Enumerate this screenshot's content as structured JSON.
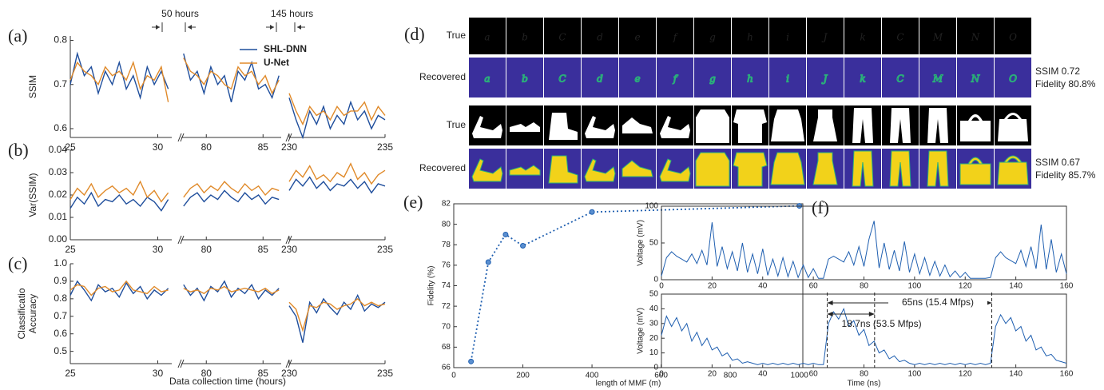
{
  "chart_data": [
    {
      "type": "broken-line",
      "label": "(a)",
      "ylabel": "SSIM",
      "ylim": [
        0.58,
        0.81
      ],
      "yticks": [
        0.6,
        0.7,
        0.8
      ],
      "series": [
        {
          "name": "SHL-DNN",
          "color": "#1f4e9c"
        },
        {
          "name": "U-Net",
          "color": "#e08a2a"
        }
      ],
      "legend": "upper right",
      "annotations": [
        "50 hours",
        "145 hours"
      ],
      "segments": [
        {
          "xlim": [
            25,
            30.8
          ],
          "xticks": [
            25,
            30
          ],
          "x": [
            25,
            25.4,
            25.8,
            26.2,
            26.6,
            27,
            27.4,
            27.8,
            28.2,
            28.6,
            29,
            29.4,
            29.8,
            30.2,
            30.6
          ],
          "series": [
            {
              "values": [
                0.7,
                0.77,
                0.72,
                0.74,
                0.68,
                0.73,
                0.7,
                0.75,
                0.69,
                0.72,
                0.67,
                0.74,
                0.7,
                0.73,
                0.69
              ]
            },
            {
              "values": [
                0.71,
                0.75,
                0.73,
                0.72,
                0.7,
                0.74,
                0.72,
                0.73,
                0.71,
                0.75,
                0.69,
                0.72,
                0.71,
                0.74,
                0.66
              ]
            }
          ]
        },
        {
          "xlim": [
            77.8,
            86.6
          ],
          "xticks": [
            80,
            85
          ],
          "x": [
            78,
            78.6,
            79.2,
            79.8,
            80.4,
            81,
            81.6,
            82.2,
            82.8,
            83.4,
            84,
            84.6,
            85.2,
            85.8,
            86.4
          ],
          "series": [
            {
              "values": [
                0.77,
                0.71,
                0.73,
                0.68,
                0.74,
                0.7,
                0.72,
                0.66,
                0.73,
                0.71,
                0.75,
                0.69,
                0.7,
                0.67,
                0.72
              ]
            },
            {
              "values": [
                0.76,
                0.73,
                0.72,
                0.7,
                0.73,
                0.72,
                0.7,
                0.69,
                0.74,
                0.72,
                0.73,
                0.7,
                0.72,
                0.68,
                0.71
              ]
            }
          ]
        },
        {
          "xlim": [
            230,
            235
          ],
          "xticks": [
            230,
            235
          ],
          "x": [
            230,
            230.36,
            230.71,
            231.07,
            231.43,
            231.79,
            232.14,
            232.5,
            232.86,
            233.21,
            233.57,
            233.93,
            234.29,
            234.64,
            235
          ],
          "series": [
            {
              "values": [
                0.67,
                0.62,
                0.58,
                0.64,
                0.61,
                0.65,
                0.6,
                0.63,
                0.61,
                0.66,
                0.62,
                0.64,
                0.6,
                0.63,
                0.62
              ]
            },
            {
              "values": [
                0.68,
                0.64,
                0.61,
                0.65,
                0.63,
                0.64,
                0.62,
                0.65,
                0.63,
                0.64,
                0.64,
                0.66,
                0.62,
                0.65,
                0.63
              ]
            }
          ]
        }
      ]
    },
    {
      "type": "broken-line",
      "label": "(b)",
      "ylabel": "Var(SSIM)",
      "ylim": [
        0,
        0.04
      ],
      "yticks": [
        {
          "value": 0,
          "label": "0.00"
        },
        0.01,
        0.02,
        0.03,
        0.04
      ],
      "series": [
        {
          "color": "#1f4e9c"
        },
        {
          "color": "#e08a2a"
        }
      ],
      "segments": [
        {
          "xlim": [
            25,
            30.8
          ],
          "xticks": [
            25,
            30
          ],
          "x": [
            25,
            25.4,
            25.8,
            26.2,
            26.6,
            27,
            27.4,
            27.8,
            28.2,
            28.6,
            29,
            29.4,
            29.8,
            30.2,
            30.6
          ],
          "series": [
            {
              "values": [
                0.014,
                0.019,
                0.016,
                0.021,
                0.015,
                0.018,
                0.017,
                0.02,
                0.016,
                0.018,
                0.015,
                0.019,
                0.017,
                0.013,
                0.018
              ]
            },
            {
              "values": [
                0.018,
                0.023,
                0.02,
                0.025,
                0.019,
                0.022,
                0.024,
                0.021,
                0.023,
                0.02,
                0.026,
                0.019,
                0.022,
                0.017,
                0.021
              ]
            }
          ]
        },
        {
          "xlim": [
            77.8,
            86.6
          ],
          "xticks": [
            80,
            85
          ],
          "x": [
            78,
            78.6,
            79.2,
            79.8,
            80.4,
            81,
            81.6,
            82.2,
            82.8,
            83.4,
            84,
            84.6,
            85.2,
            85.8,
            86.4
          ],
          "series": [
            {
              "values": [
                0.015,
                0.019,
                0.021,
                0.017,
                0.02,
                0.018,
                0.022,
                0.019,
                0.017,
                0.021,
                0.018,
                0.02,
                0.016,
                0.019,
                0.018
              ]
            },
            {
              "values": [
                0.019,
                0.023,
                0.025,
                0.021,
                0.024,
                0.022,
                0.026,
                0.023,
                0.021,
                0.025,
                0.022,
                0.024,
                0.02,
                0.023,
                0.022
              ]
            }
          ]
        },
        {
          "xlim": [
            230,
            235
          ],
          "xticks": [
            230,
            235
          ],
          "x": [
            230,
            230.36,
            230.71,
            231.07,
            231.43,
            231.79,
            232.14,
            232.5,
            232.86,
            233.21,
            233.57,
            233.93,
            234.29,
            234.64,
            235
          ],
          "series": [
            {
              "values": [
                0.022,
                0.027,
                0.024,
                0.028,
                0.023,
                0.026,
                0.022,
                0.025,
                0.024,
                0.027,
                0.023,
                0.026,
                0.021,
                0.025,
                0.024
              ]
            },
            {
              "values": [
                0.026,
                0.031,
                0.028,
                0.033,
                0.027,
                0.029,
                0.026,
                0.03,
                0.028,
                0.034,
                0.027,
                0.03,
                0.025,
                0.029,
                0.031
              ]
            }
          ]
        }
      ]
    },
    {
      "type": "broken-line",
      "label": "(c)",
      "ylabel": [
        "Classificatio",
        "Accuracy"
      ],
      "xlabel": "Data collection time (hours)",
      "ylim": [
        0.43,
        1.0
      ],
      "yticks": [
        0.5,
        0.6,
        0.7,
        0.8,
        0.9,
        {
          "value": 1,
          "label": "1.0"
        }
      ],
      "series": [
        {
          "color": "#1f4e9c"
        },
        {
          "color": "#e08a2a"
        }
      ],
      "segments": [
        {
          "xlim": [
            25,
            30.8
          ],
          "xticks": [
            25,
            30
          ],
          "x": [
            25,
            25.4,
            25.8,
            26.2,
            26.6,
            27,
            27.4,
            27.8,
            28.2,
            28.6,
            29,
            29.4,
            29.8,
            30.2,
            30.6
          ],
          "series": [
            {
              "values": [
                0.82,
                0.9,
                0.85,
                0.79,
                0.88,
                0.84,
                0.86,
                0.81,
                0.89,
                0.83,
                0.87,
                0.8,
                0.85,
                0.82,
                0.86
              ]
            },
            {
              "values": [
                0.85,
                0.88,
                0.87,
                0.82,
                0.86,
                0.87,
                0.84,
                0.85,
                0.9,
                0.85,
                0.84,
                0.83,
                0.87,
                0.84,
                0.85
              ]
            }
          ]
        },
        {
          "xlim": [
            77.8,
            86.6
          ],
          "xticks": [
            80,
            85
          ],
          "x": [
            78,
            78.6,
            79.2,
            79.8,
            80.4,
            81,
            81.6,
            82.2,
            82.8,
            83.4,
            84,
            84.6,
            85.2,
            85.8,
            86.4
          ],
          "series": [
            {
              "values": [
                0.88,
                0.82,
                0.86,
                0.79,
                0.87,
                0.84,
                0.9,
                0.81,
                0.86,
                0.83,
                0.88,
                0.8,
                0.85,
                0.82,
                0.86
              ]
            },
            {
              "values": [
                0.86,
                0.84,
                0.85,
                0.83,
                0.86,
                0.85,
                0.87,
                0.84,
                0.85,
                0.86,
                0.85,
                0.84,
                0.86,
                0.83,
                0.85
              ]
            }
          ]
        },
        {
          "xlim": [
            230,
            235
          ],
          "xticks": [
            230,
            235
          ],
          "x": [
            230,
            230.36,
            230.71,
            231.07,
            231.43,
            231.79,
            232.14,
            232.5,
            232.86,
            233.21,
            233.57,
            233.93,
            234.29,
            234.64,
            235
          ],
          "series": [
            {
              "values": [
                0.76,
                0.7,
                0.55,
                0.78,
                0.72,
                0.8,
                0.75,
                0.71,
                0.78,
                0.74,
                0.82,
                0.73,
                0.77,
                0.75,
                0.78
              ]
            },
            {
              "values": [
                0.78,
                0.74,
                0.62,
                0.76,
                0.75,
                0.78,
                0.77,
                0.74,
                0.76,
                0.77,
                0.8,
                0.76,
                0.78,
                0.76,
                0.77
              ]
            }
          ]
        }
      ]
    },
    {
      "type": "dotted-line",
      "label": "(e)",
      "xlabel": "length of MMF (m)",
      "ylabel": "Fidelity (%)",
      "color": "#1f5fb0",
      "x": [
        50,
        100,
        150,
        200,
        400,
        1000
      ],
      "values": [
        66.6,
        76.3,
        79.0,
        77.9,
        81.2,
        81.8
      ],
      "xlim": [
        0,
        1010
      ],
      "xticks": [
        0,
        200,
        400,
        600,
        800,
        1000
      ],
      "ylim": [
        66,
        82
      ],
      "yticks": [
        66,
        68,
        70,
        72,
        74,
        76,
        78,
        80,
        82
      ]
    },
    {
      "type": "signal",
      "label": "(f)",
      "ylabel": "Voltage (mV)",
      "color": "#1f5fb0",
      "xlim": [
        0,
        160
      ],
      "xticks": [
        0,
        20,
        40,
        60,
        80,
        100,
        120,
        140,
        160
      ],
      "ylim": [
        0,
        100
      ],
      "yticks": [
        0,
        50,
        100
      ],
      "x": [
        0,
        2,
        4,
        6,
        8,
        10,
        12,
        14,
        16,
        18,
        20,
        22,
        24,
        26,
        28,
        30,
        32,
        34,
        36,
        38,
        40,
        42,
        44,
        46,
        48,
        50,
        52,
        54,
        56,
        58,
        60,
        62,
        64,
        66,
        68,
        70,
        72,
        74,
        76,
        78,
        80,
        82,
        84,
        86,
        88,
        90,
        92,
        94,
        96,
        98,
        100,
        102,
        104,
        106,
        108,
        110,
        112,
        114,
        116,
        118,
        120,
        122,
        124,
        126,
        128,
        130,
        132,
        134,
        136,
        138,
        140,
        142,
        144,
        146,
        148,
        150,
        152,
        154,
        156,
        158,
        160
      ],
      "values": [
        5,
        30,
        38,
        32,
        28,
        24,
        35,
        22,
        40,
        20,
        78,
        18,
        45,
        15,
        38,
        12,
        50,
        10,
        35,
        8,
        42,
        6,
        28,
        5,
        30,
        4,
        25,
        3,
        20,
        3,
        15,
        2,
        2,
        28,
        32,
        28,
        24,
        38,
        20,
        45,
        18,
        55,
        80,
        16,
        50,
        14,
        40,
        12,
        52,
        10,
        35,
        8,
        30,
        6,
        25,
        5,
        20,
        4,
        12,
        3,
        10,
        2,
        2,
        2,
        2,
        3,
        30,
        38,
        30,
        26,
        22,
        40,
        18,
        45,
        15,
        75,
        14,
        55,
        10,
        35,
        8
      ]
    },
    {
      "type": "signal",
      "ylabel": "Voltage (mV)",
      "xlabel": "Time (ns)",
      "color": "#1f5fb0",
      "xlim": [
        0,
        160
      ],
      "xticks": [
        0,
        20,
        40,
        60,
        80,
        100,
        120,
        140,
        160
      ],
      "ylim": [
        0,
        50
      ],
      "yticks": [
        0,
        10,
        20,
        30,
        40,
        50
      ],
      "vlines": [
        65.5,
        84.2,
        130.5
      ],
      "annotations": [
        "65ns (15.4 Mfps)",
        "18.7ns (53.5 Mfps)"
      ],
      "x": [
        0,
        2,
        4,
        6,
        8,
        10,
        12,
        14,
        16,
        18,
        20,
        22,
        24,
        26,
        28,
        30,
        32,
        34,
        36,
        38,
        40,
        42,
        44,
        46,
        48,
        50,
        52,
        54,
        56,
        58,
        60,
        62,
        64,
        66,
        68,
        70,
        72,
        74,
        76,
        78,
        80,
        82,
        84,
        86,
        88,
        90,
        92,
        94,
        96,
        98,
        100,
        102,
        104,
        106,
        108,
        110,
        112,
        114,
        116,
        118,
        120,
        122,
        124,
        126,
        128,
        130,
        132,
        134,
        136,
        138,
        140,
        142,
        144,
        146,
        148,
        150,
        152,
        154,
        156,
        158,
        160
      ],
      "values": [
        22,
        35,
        28,
        34,
        25,
        30,
        18,
        24,
        15,
        20,
        12,
        14,
        8,
        10,
        5,
        6,
        3,
        4,
        3,
        2,
        3,
        2,
        3,
        2,
        3,
        2,
        3,
        2,
        3,
        2,
        3,
        2,
        2,
        30,
        38,
        33,
        40,
        28,
        32,
        22,
        26,
        15,
        18,
        10,
        12,
        6,
        8,
        4,
        5,
        3,
        2,
        3,
        2,
        3,
        2,
        3,
        2,
        3,
        2,
        3,
        2,
        3,
        2,
        3,
        2,
        3,
        28,
        36,
        30,
        34,
        25,
        28,
        18,
        22,
        12,
        14,
        8,
        9,
        5,
        4,
        3
      ]
    }
  ],
  "image_panel": {
    "label": "(d)",
    "row_labels": [
      "True",
      "Recovered",
      "True",
      "Recovered"
    ],
    "glyphs": [
      "a",
      "b",
      "C",
      "d",
      "e",
      "f",
      "g",
      "h",
      "i",
      "J",
      "k",
      "C",
      "M",
      "N",
      "O"
    ],
    "stats": [
      [
        "SSIM 0.72",
        "Fidelity 80.8%"
      ],
      [
        "SSIM 0.67",
        "Fidelity 85.7%"
      ]
    ]
  }
}
